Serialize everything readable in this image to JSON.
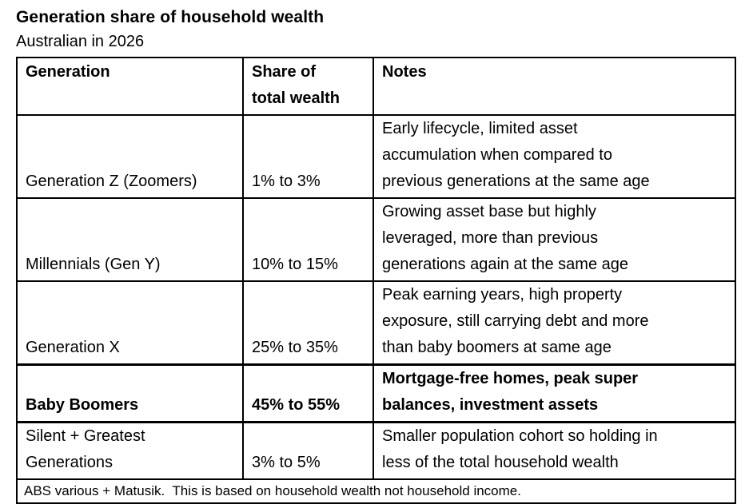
{
  "page": {
    "title": "Generation share of household wealth",
    "subtitle": "Australian in 2026"
  },
  "table": {
    "headers": {
      "generation": "Generation",
      "share": "Share of\ntotal wealth",
      "notes": "Notes"
    },
    "rows": [
      {
        "generation": "Generation Z (Zoomers)",
        "share": "1% to 3%",
        "notes": "Early lifecycle, limited asset\naccumulation when compared to\nprevious generations at the same age",
        "emphasis": false
      },
      {
        "generation": "Millennials (Gen Y)",
        "share": "10% to 15%",
        "notes": "Growing asset base but highly\nleveraged, more than previous\ngenerations again at the same age",
        "emphasis": false
      },
      {
        "generation": "Generation X",
        "share": "25% to 35%",
        "notes": "Peak earning years, high property\nexposure, still carrying debt and more\nthan baby boomers at same age",
        "emphasis": false
      },
      {
        "generation": "Baby Boomers",
        "share": "45% to 55%",
        "notes": "Mortgage-free homes, peak super\nbalances, investment assets",
        "emphasis": true
      },
      {
        "generation": "Silent + Greatest\nGenerations",
        "share": "3% to 5%",
        "notes": "Smaller population cohort so holding in\nless of the total household wealth",
        "emphasis": false
      }
    ],
    "source_note": "ABS various + Matusik.  This is based on household wealth not household income."
  },
  "chart_data": {
    "type": "table",
    "title": "Generation share of household wealth",
    "subtitle": "Australian in 2026",
    "columns": [
      "Generation",
      "Share of total wealth",
      "Notes"
    ],
    "rows": [
      [
        "Generation Z (Zoomers)",
        "1% to 3%",
        "Early lifecycle, limited asset accumulation when compared to previous generations at the same age"
      ],
      [
        "Millennials (Gen Y)",
        "10% to 15%",
        "Growing asset base but highly leveraged, more than previous generations again at the same age"
      ],
      [
        "Generation X",
        "25% to 35%",
        "Peak earning years, high property exposure, still carrying debt and more than baby boomers at same age"
      ],
      [
        "Baby Boomers",
        "45% to 55%",
        "Mortgage-free homes, peak super balances, investment assets"
      ],
      [
        "Silent + Greatest Generations",
        "3% to 5%",
        "Smaller population cohort so holding in less of the total household wealth"
      ]
    ],
    "emphasized_row": "Baby Boomers",
    "source": "ABS various + Matusik.  This is based on household wealth not household income.",
    "colors": {
      "text": "#000000",
      "background": "#ffffff",
      "border": "#000000"
    }
  }
}
